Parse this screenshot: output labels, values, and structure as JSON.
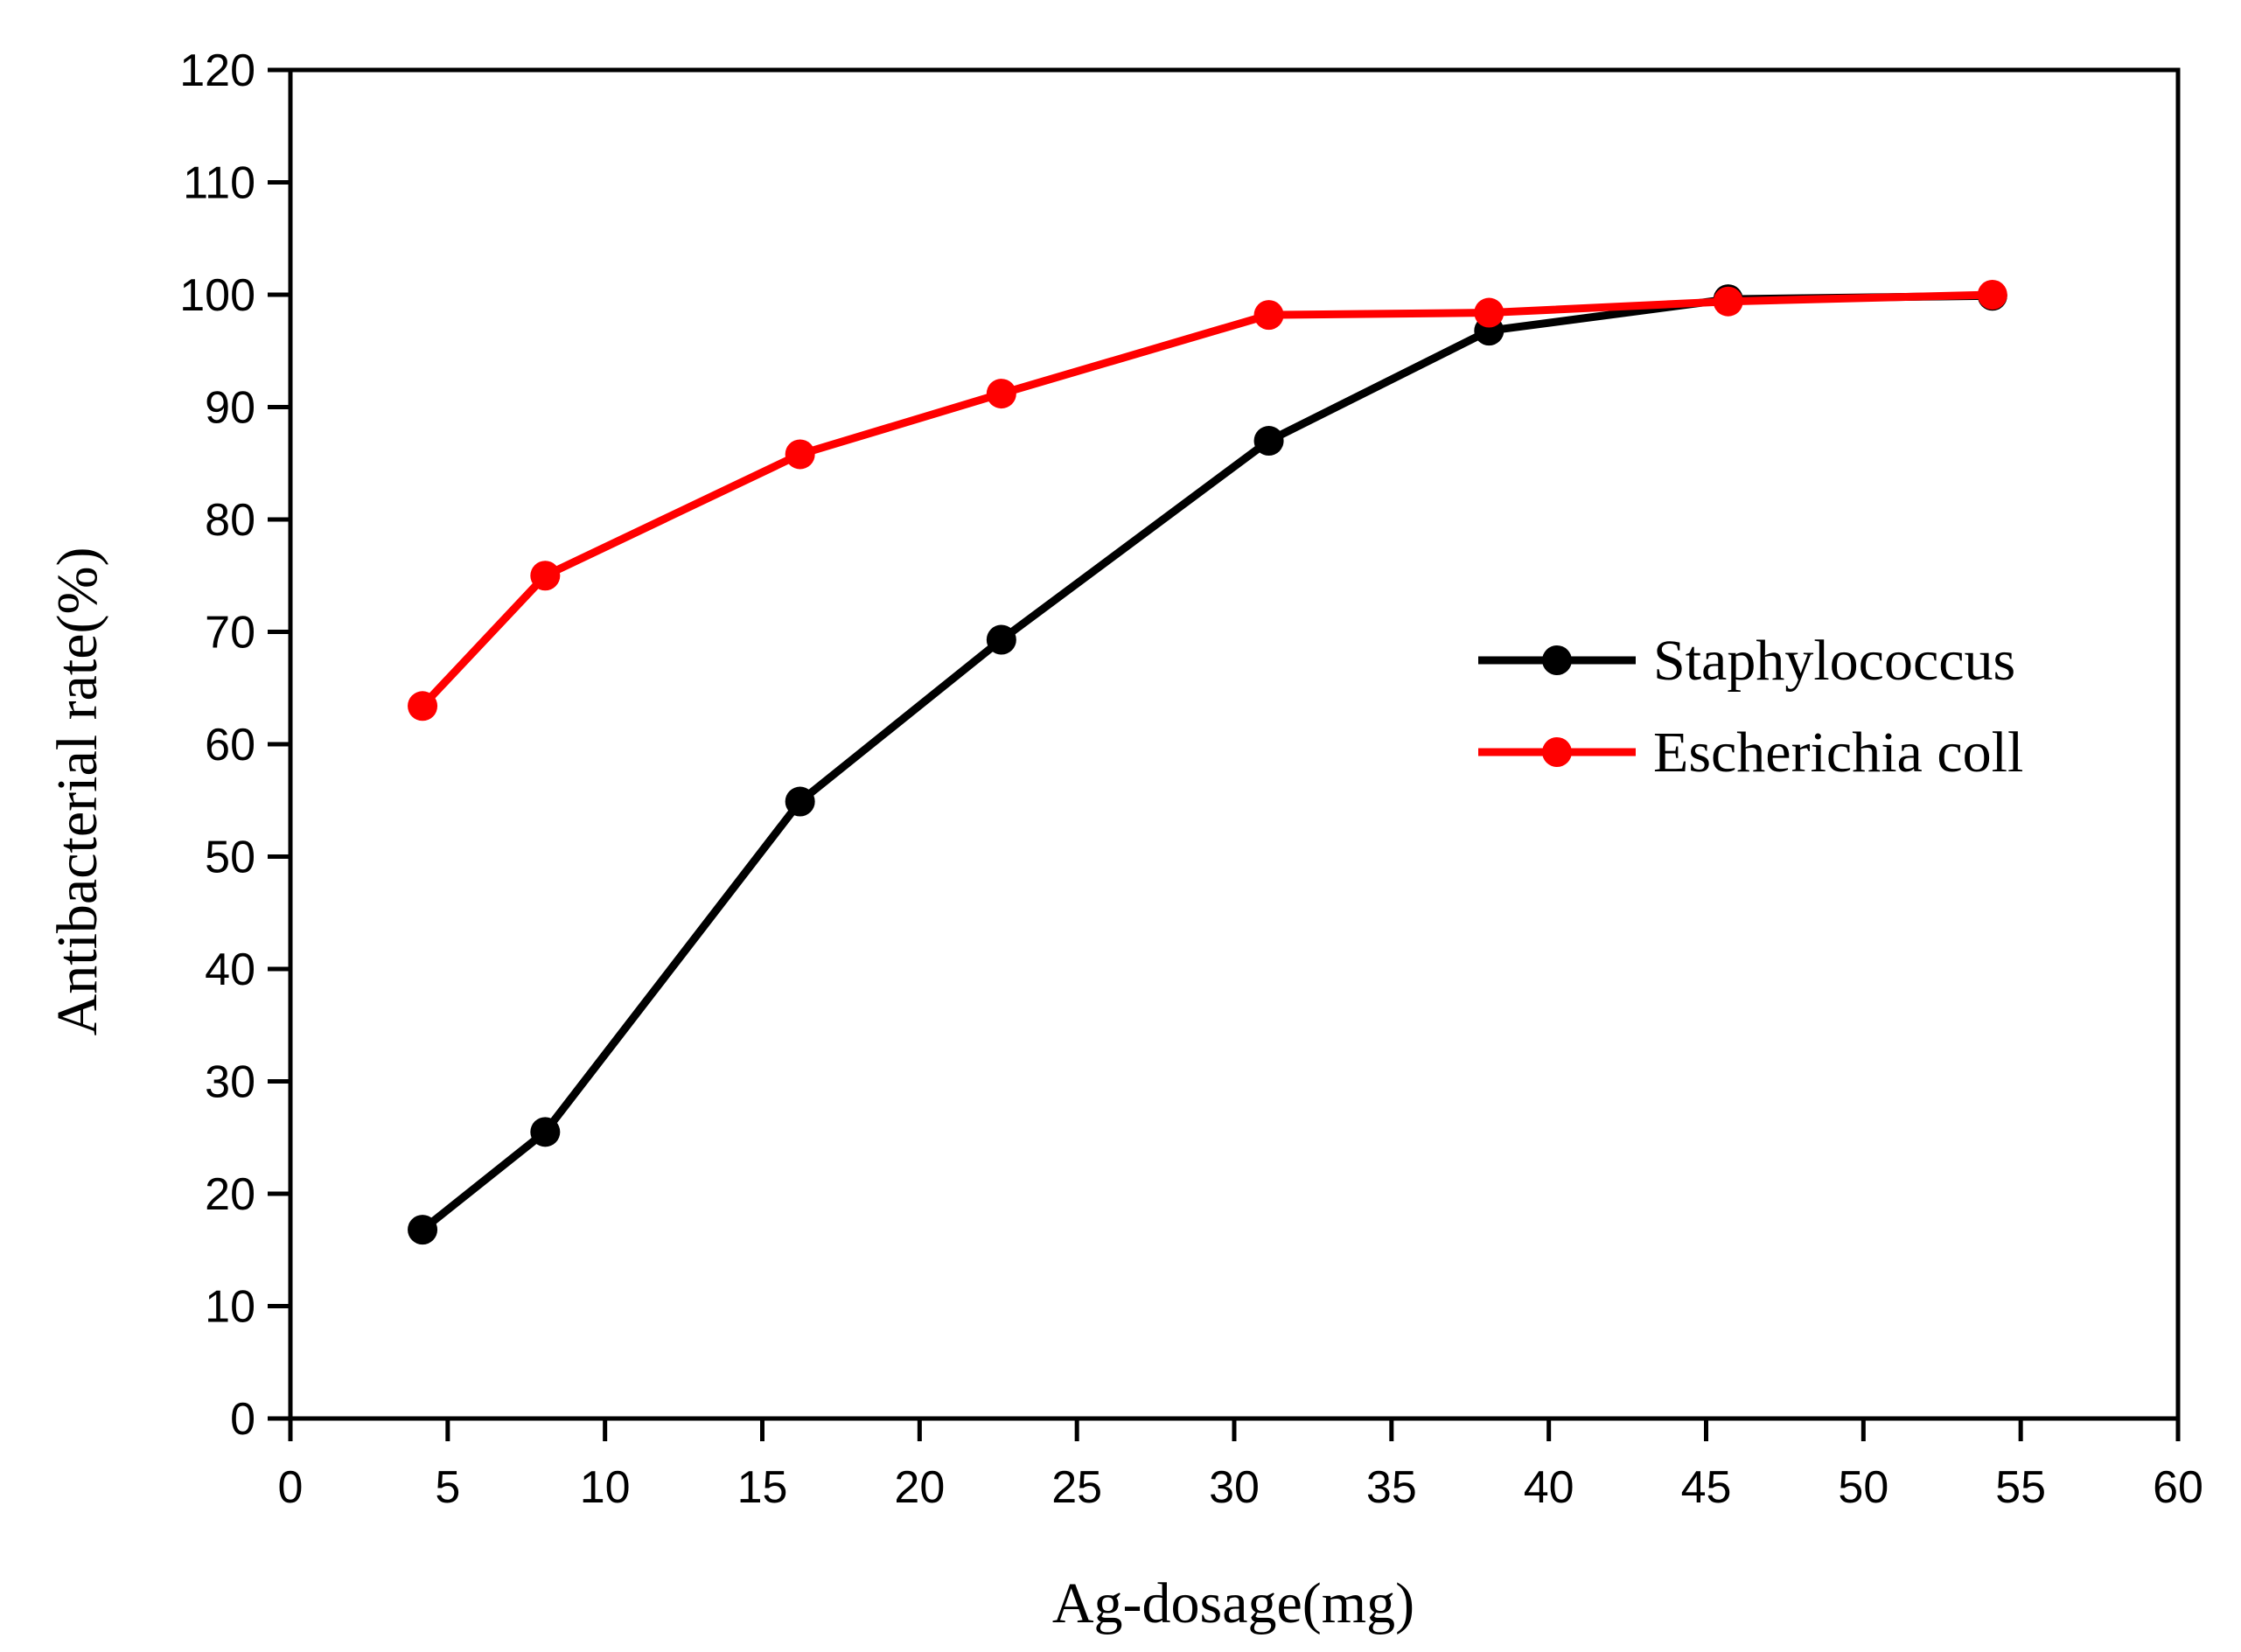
{
  "chart_data": {
    "type": "line",
    "title": "",
    "xlabel": "Ag-dosage(mg)",
    "ylabel": "Antibacterial rate(%)",
    "xlim": [
      0,
      60
    ],
    "ylim": [
      0,
      120
    ],
    "xticks": [
      0,
      5,
      10,
      15,
      20,
      25,
      30,
      35,
      40,
      45,
      50,
      55,
      60
    ],
    "yticks": [
      0,
      10,
      20,
      30,
      40,
      50,
      60,
      70,
      80,
      90,
      100,
      110,
      120
    ],
    "grid": false,
    "legend_position": "center-right",
    "series": [
      {
        "name": "Staphylococcus",
        "color": "#000000",
        "x": [
          4.2,
          8.1,
          16.2,
          22.6,
          31.1,
          38.1,
          45.7,
          54.1
        ],
        "y": [
          16.8,
          25.5,
          54.9,
          69.3,
          87.0,
          96.8,
          99.6,
          99.9
        ]
      },
      {
        "name": "Escherichia coll",
        "color": "#ff0000",
        "x": [
          4.2,
          8.1,
          16.2,
          22.6,
          31.1,
          38.1,
          45.7,
          54.1
        ],
        "y": [
          63.4,
          75.0,
          85.8,
          91.2,
          98.2,
          98.4,
          99.4,
          100.0
        ]
      }
    ]
  }
}
